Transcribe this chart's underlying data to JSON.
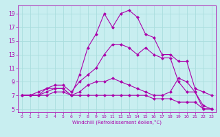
{
  "xlabel": "Windchill (Refroidissement éolien,°C)",
  "background_color": "#c8eef0",
  "grid_color": "#aadddd",
  "line_color": "#aa00aa",
  "x_ticks": [
    0,
    1,
    2,
    3,
    4,
    5,
    6,
    7,
    8,
    9,
    10,
    11,
    12,
    13,
    14,
    15,
    16,
    17,
    18,
    19,
    20,
    21,
    22,
    23
  ],
  "y_ticks": [
    5,
    7,
    9,
    11,
    13,
    15,
    17,
    19
  ],
  "xlim": [
    -0.5,
    23.5
  ],
  "ylim": [
    4.5,
    20.2
  ],
  "series1": [
    7,
    7,
    7,
    7.5,
    8,
    8,
    7,
    7.5,
    8.5,
    9,
    9,
    9.5,
    9,
    8.5,
    8,
    7.5,
    7,
    7,
    7.5,
    9.5,
    9,
    7.5,
    5,
    5
  ],
  "series2": [
    7,
    7,
    7.5,
    8,
    8.5,
    8.5,
    7.5,
    9,
    10,
    11,
    13,
    14.5,
    14.5,
    14,
    13,
    14,
    13,
    12.5,
    12.5,
    9,
    7.5,
    7.5,
    5.5,
    5
  ],
  "series3": [
    7,
    7,
    7,
    7,
    7.5,
    7.5,
    7,
    7,
    7,
    7,
    7,
    7,
    7,
    7,
    7,
    7,
    6.5,
    6.5,
    6.5,
    6,
    6,
    6,
    5,
    5
  ],
  "series4": [
    7,
    7,
    7,
    8,
    8,
    8,
    7,
    10,
    14,
    16,
    19,
    17,
    19,
    19.5,
    18.5,
    16,
    15.5,
    13,
    13,
    12,
    12,
    8,
    7.5,
    7
  ]
}
